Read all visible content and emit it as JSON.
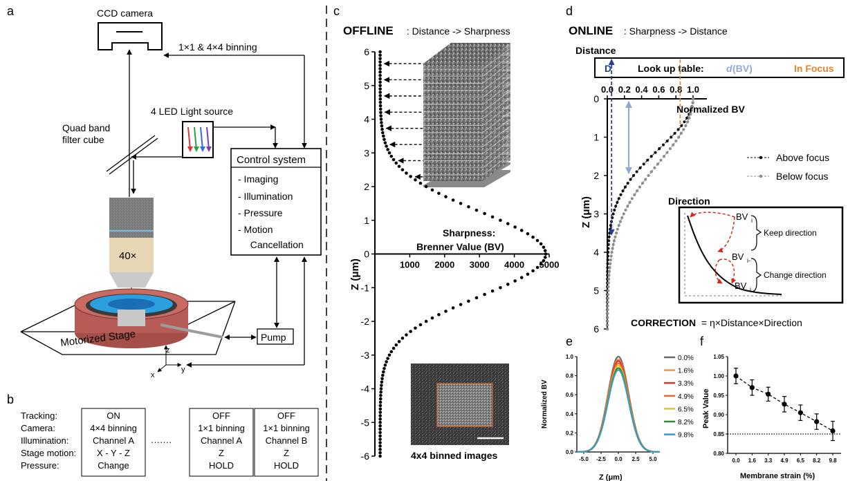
{
  "panel_letters": {
    "a": "a",
    "b": "b",
    "c": "c",
    "d": "d",
    "e": "e",
    "f": "f"
  },
  "panel_a": {
    "ccd_camera": "CCD camera",
    "binning": "1×1 & 4×4 binning",
    "light_source": "4 LED Light source",
    "filter_cube_line1": "Quad band",
    "filter_cube_line2": "filter cube",
    "control_title": "Control system",
    "control_items": [
      "- Imaging",
      "- Illumination",
      "- Pressure",
      "- Motion",
      "  Cancellation"
    ],
    "objective": "40×",
    "pump": "Pump",
    "stage": "Motorized Stage",
    "axis_z": "z",
    "axis_x": "x",
    "axis_y": "y",
    "led_colors": [
      "#e3342f",
      "#2e9e46",
      "#2f6fd6",
      "#7b3fb0"
    ]
  },
  "panel_b": {
    "row_labels": [
      "Tracking:",
      "Camera:",
      "Illumination:",
      "Stage motion:",
      "Pressure:"
    ],
    "col1": [
      "ON",
      "4×4 binning",
      "Channel A",
      "X - Y - Z",
      "Change"
    ],
    "col2": [
      "OFF",
      "1×1 binning",
      "Channel A",
      "Z",
      "HOLD"
    ],
    "col3": [
      "OFF",
      "1×1 binning",
      "Channel B",
      "Z",
      "HOLD"
    ],
    "dots": "·······"
  },
  "panel_c": {
    "title_bold": "OFFLINE",
    "title_rest": " : Distance -> Sharpness",
    "sharp_line1": "Sharpness:",
    "sharp_line2": "Brenner Value (BV)",
    "ylabel": "Z (μm)",
    "caption": "4x4 binned images"
  },
  "panel_d": {
    "title_bold": "ONLINE",
    "title_rest": " : Sharpness -> Distance",
    "distance_label": "Distance",
    "lut_d": "D",
    "lut_text": "Look up table:",
    "lut_dbv_d": "d",
    "lut_dbv_rest": "(BV)",
    "lut_focus": "In Focus",
    "xaxis_title": "Normalized BV",
    "ylabel": "Z (μm)",
    "legend_above": "Above focus",
    "legend_below": "Below focus",
    "direction_title": "Direction",
    "bv_top": "BV",
    "bv_mid": "BV",
    "bv_bot": "BV",
    "sub_i": "i",
    "sub_i_minus": "i-",
    "keep": "Keep direction",
    "change": "Change direction",
    "correction_bold": "CORRECTION",
    "correction_rest": " = η×Distance×Direction",
    "colors": {
      "dark_blue": "#1f3f99",
      "light_blue": "#8fa9d6",
      "orange": "#e8822a",
      "red": "#d9231d"
    }
  },
  "panel_e": {
    "ylabel": "Normalized BV",
    "xlabel": "Z (μm)"
  },
  "panel_f": {
    "ylabel": "Peak Value",
    "xlabel": "Membrane strain (%)"
  },
  "chart_data": [
    {
      "id": "c",
      "type": "scatter",
      "xlim": [
        0,
        5000
      ],
      "ylim": [
        -6,
        6
      ],
      "x_ticks": [
        1000,
        2000,
        3000,
        4000,
        5000
      ],
      "y_ticks": [
        -6,
        -5,
        -4,
        -3,
        -2,
        -1,
        0,
        1,
        2,
        3,
        4,
        5,
        6
      ],
      "ylabel": "Z (μm)",
      "curve": {
        "peak": 4900,
        "center": 0,
        "sigma": 1.25,
        "baseline": 150,
        "step": 0.1
      }
    },
    {
      "id": "d",
      "type": "line",
      "xlim": [
        0,
        1
      ],
      "ylim": [
        0,
        6
      ],
      "x_ticks": [
        0.0,
        0.2,
        0.4,
        0.6,
        0.8,
        1.0
      ],
      "y_ticks": [
        0,
        1,
        2,
        3,
        4,
        5,
        6
      ],
      "xlabel": "Normalized BV",
      "ylabel": "Z (μm)",
      "in_focus_bv": 0.85,
      "distance_bv": 0.05,
      "series": [
        {
          "name": "Above focus",
          "color": "#111111",
          "sigma": 1.3
        },
        {
          "name": "Below focus",
          "color": "#8c8c8c",
          "sigma": 1.65
        }
      ]
    },
    {
      "id": "e",
      "type": "line",
      "xlim": [
        -6,
        6
      ],
      "ylim": [
        0,
        1
      ],
      "x_ticks": [
        -5.0,
        -2.5,
        0.0,
        2.5,
        5.0
      ],
      "y_ticks": [
        0.0,
        0.2,
        0.4,
        0.6,
        0.8,
        1.0
      ],
      "xlabel": "Z (μm)",
      "ylabel": "Normalized BV",
      "series": [
        {
          "name": "0.0%",
          "color": "#6b6b6b",
          "peak": 1.0
        },
        {
          "name": "1.6%",
          "color": "#e39a4a",
          "peak": 0.97
        },
        {
          "name": "3.3%",
          "color": "#e2312b",
          "peak": 0.955
        },
        {
          "name": "4.9%",
          "color": "#ef6a2c",
          "peak": 0.93
        },
        {
          "name": "6.5%",
          "color": "#d7c62a",
          "peak": 0.905
        },
        {
          "name": "8.2%",
          "color": "#2e8a3c",
          "peak": 0.88
        },
        {
          "name": "9.8%",
          "color": "#3b9bc4",
          "peak": 0.86
        }
      ]
    },
    {
      "id": "f",
      "type": "scatter",
      "categories": [
        "0.0",
        "1.6",
        "3.3",
        "4.9",
        "6.5",
        "8.2",
        "9.8"
      ],
      "values": [
        1.0,
        0.97,
        0.953,
        0.927,
        0.905,
        0.882,
        0.858
      ],
      "errors": [
        0.02,
        0.02,
        0.018,
        0.02,
        0.02,
        0.02,
        0.025
      ],
      "ylim": [
        0.8,
        1.05
      ],
      "y_ticks": [
        0.8,
        0.85,
        0.9,
        0.95,
        1.0,
        1.05
      ],
      "reference_line": 0.85,
      "xlabel": "Membrane strain (%)",
      "ylabel": "Peak Value"
    }
  ]
}
